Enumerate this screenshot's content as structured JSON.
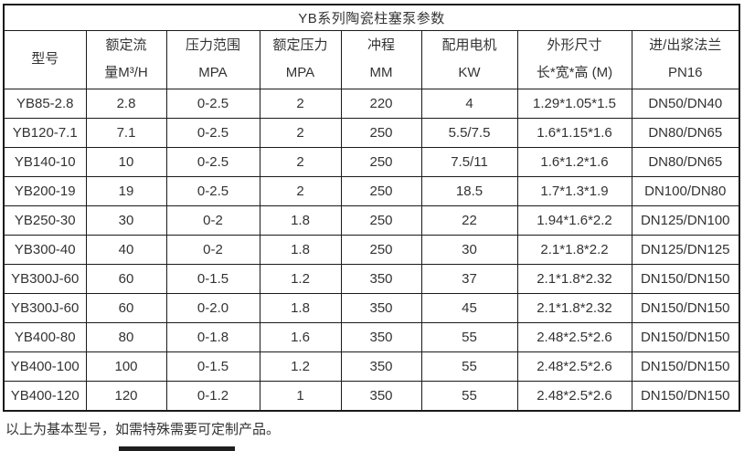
{
  "table": {
    "title": "YB系列陶瓷柱塞泵参数",
    "columns": [
      {
        "line1": "型号",
        "line2": ""
      },
      {
        "line1": "额定流",
        "line2": "量M³/H"
      },
      {
        "line1": "压力范围",
        "line2": "MPA"
      },
      {
        "line1": "额定压力",
        "line2": "MPA"
      },
      {
        "line1": "冲程",
        "line2": "MM"
      },
      {
        "line1": "配用电机",
        "line2": "KW"
      },
      {
        "line1": "外形尺寸",
        "line2": "长*宽*高 (M)"
      },
      {
        "line1": "进/出浆法兰",
        "line2": "PN16"
      }
    ],
    "rows": [
      [
        "YB85-2.8",
        "2.8",
        "0-2.5",
        "2",
        "220",
        "4",
        "1.29*1.05*1.5",
        "DN50/DN40"
      ],
      [
        "YB120-7.1",
        "7.1",
        "0-2.5",
        "2",
        "250",
        "5.5/7.5",
        "1.6*1.15*1.6",
        "DN80/DN65"
      ],
      [
        "YB140-10",
        "10",
        "0-2.5",
        "2",
        "250",
        "7.5/11",
        "1.6*1.2*1.6",
        "DN80/DN65"
      ],
      [
        "YB200-19",
        "19",
        "0-2.5",
        "2",
        "250",
        "18.5",
        "1.7*1.3*1.9",
        "DN100/DN80"
      ],
      [
        "YB250-30",
        "30",
        "0-2",
        "1.8",
        "250",
        "22",
        "1.94*1.6*2.2",
        "DN125/DN100"
      ],
      [
        "YB300-40",
        "40",
        "0-2",
        "1.8",
        "250",
        "30",
        "2.1*1.8*2.2",
        "DN125/DN125"
      ],
      [
        "YB300J-60",
        "60",
        "0-1.5",
        "1.2",
        "350",
        "37",
        "2.1*1.8*2.32",
        "DN150/DN150"
      ],
      [
        "YB300J-60",
        "60",
        "0-2.0",
        "1.8",
        "350",
        "45",
        "2.1*1.8*2.32",
        "DN150/DN150"
      ],
      [
        "YB400-80",
        "80",
        "0-1.8",
        "1.6",
        "350",
        "55",
        "2.48*2.5*2.6",
        "DN150/DN150"
      ],
      [
        "YB400-100",
        "100",
        "0-1.5",
        "1.2",
        "350",
        "55",
        "2.48*2.5*2.6",
        "DN150/DN150"
      ],
      [
        "YB400-120",
        "120",
        "0-1.2",
        "1",
        "350",
        "55",
        "2.48*2.5*2.6",
        "DN150/DN150"
      ]
    ],
    "footnote": "以上为基本型号，如需特殊需要可定制产品。"
  },
  "colors": {
    "border": "#1a1a1a",
    "text": "#333333",
    "background": "#ffffff",
    "bottom_bar": "#1f1f1f"
  }
}
